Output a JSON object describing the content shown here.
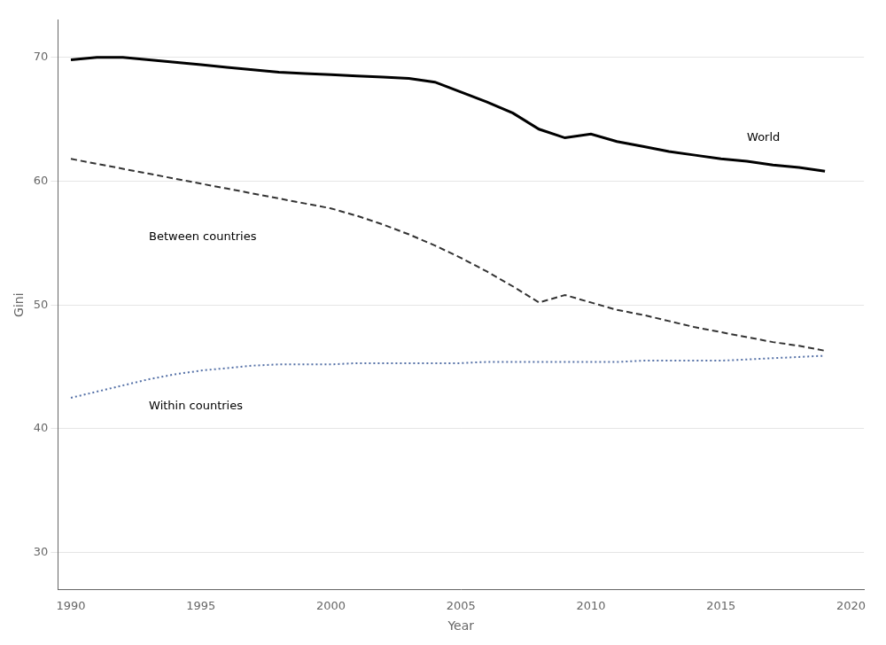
{
  "chart_data": {
    "type": "line",
    "xlabel": "Year",
    "ylabel": "Gini",
    "x": [
      1990,
      1991,
      1992,
      1993,
      1994,
      1995,
      1996,
      1997,
      1998,
      1999,
      2000,
      2001,
      2002,
      2003,
      2004,
      2005,
      2006,
      2007,
      2008,
      2009,
      2010,
      2011,
      2012,
      2013,
      2014,
      2015,
      2016,
      2017,
      2018,
      2019
    ],
    "series": [
      {
        "name": "World",
        "color": "#000000",
        "line_style": "solid",
        "values": [
          69.8,
          70.0,
          70.0,
          69.8,
          69.6,
          69.4,
          69.2,
          69.0,
          68.8,
          68.7,
          68.6,
          68.5,
          68.4,
          68.3,
          68.0,
          67.2,
          66.4,
          65.5,
          64.2,
          63.5,
          63.8,
          63.2,
          62.8,
          62.4,
          62.1,
          61.8,
          61.6,
          61.3,
          61.1,
          60.8
        ]
      },
      {
        "name": "Between countries",
        "color": "#333333",
        "line_style": "dashed",
        "values": [
          61.8,
          61.4,
          61.0,
          60.6,
          60.2,
          59.8,
          59.4,
          59.0,
          58.6,
          58.2,
          57.8,
          57.2,
          56.5,
          55.7,
          54.8,
          53.8,
          52.7,
          51.5,
          50.2,
          50.8,
          50.2,
          49.6,
          49.2,
          48.7,
          48.2,
          47.8,
          47.4,
          47.0,
          46.7,
          46.3
        ]
      },
      {
        "name": "Within countries",
        "color": "#5571a7",
        "line_style": "dotted",
        "values": [
          42.5,
          43.0,
          43.5,
          44.0,
          44.4,
          44.7,
          44.9,
          45.1,
          45.2,
          45.2,
          45.2,
          45.3,
          45.3,
          45.3,
          45.3,
          45.3,
          45.4,
          45.4,
          45.4,
          45.4,
          45.4,
          45.4,
          45.5,
          45.5,
          45.5,
          45.5,
          45.6,
          45.7,
          45.8,
          45.9
        ]
      }
    ],
    "annotations": [
      {
        "text": "World",
        "x": 2016.0,
        "y": 63.5
      },
      {
        "text": "Between countries",
        "x": 1993.0,
        "y": 55.5
      },
      {
        "text": "Within countries",
        "x": 1993.0,
        "y": 41.8
      }
    ],
    "xlim": [
      1989.5,
      2020.5
    ],
    "xticks": [
      1990,
      1995,
      2000,
      2005,
      2010,
      2015,
      2020
    ],
    "ylim": [
      27,
      73
    ],
    "yticks": [
      30,
      40,
      50,
      60,
      70
    ],
    "grid": "y"
  }
}
